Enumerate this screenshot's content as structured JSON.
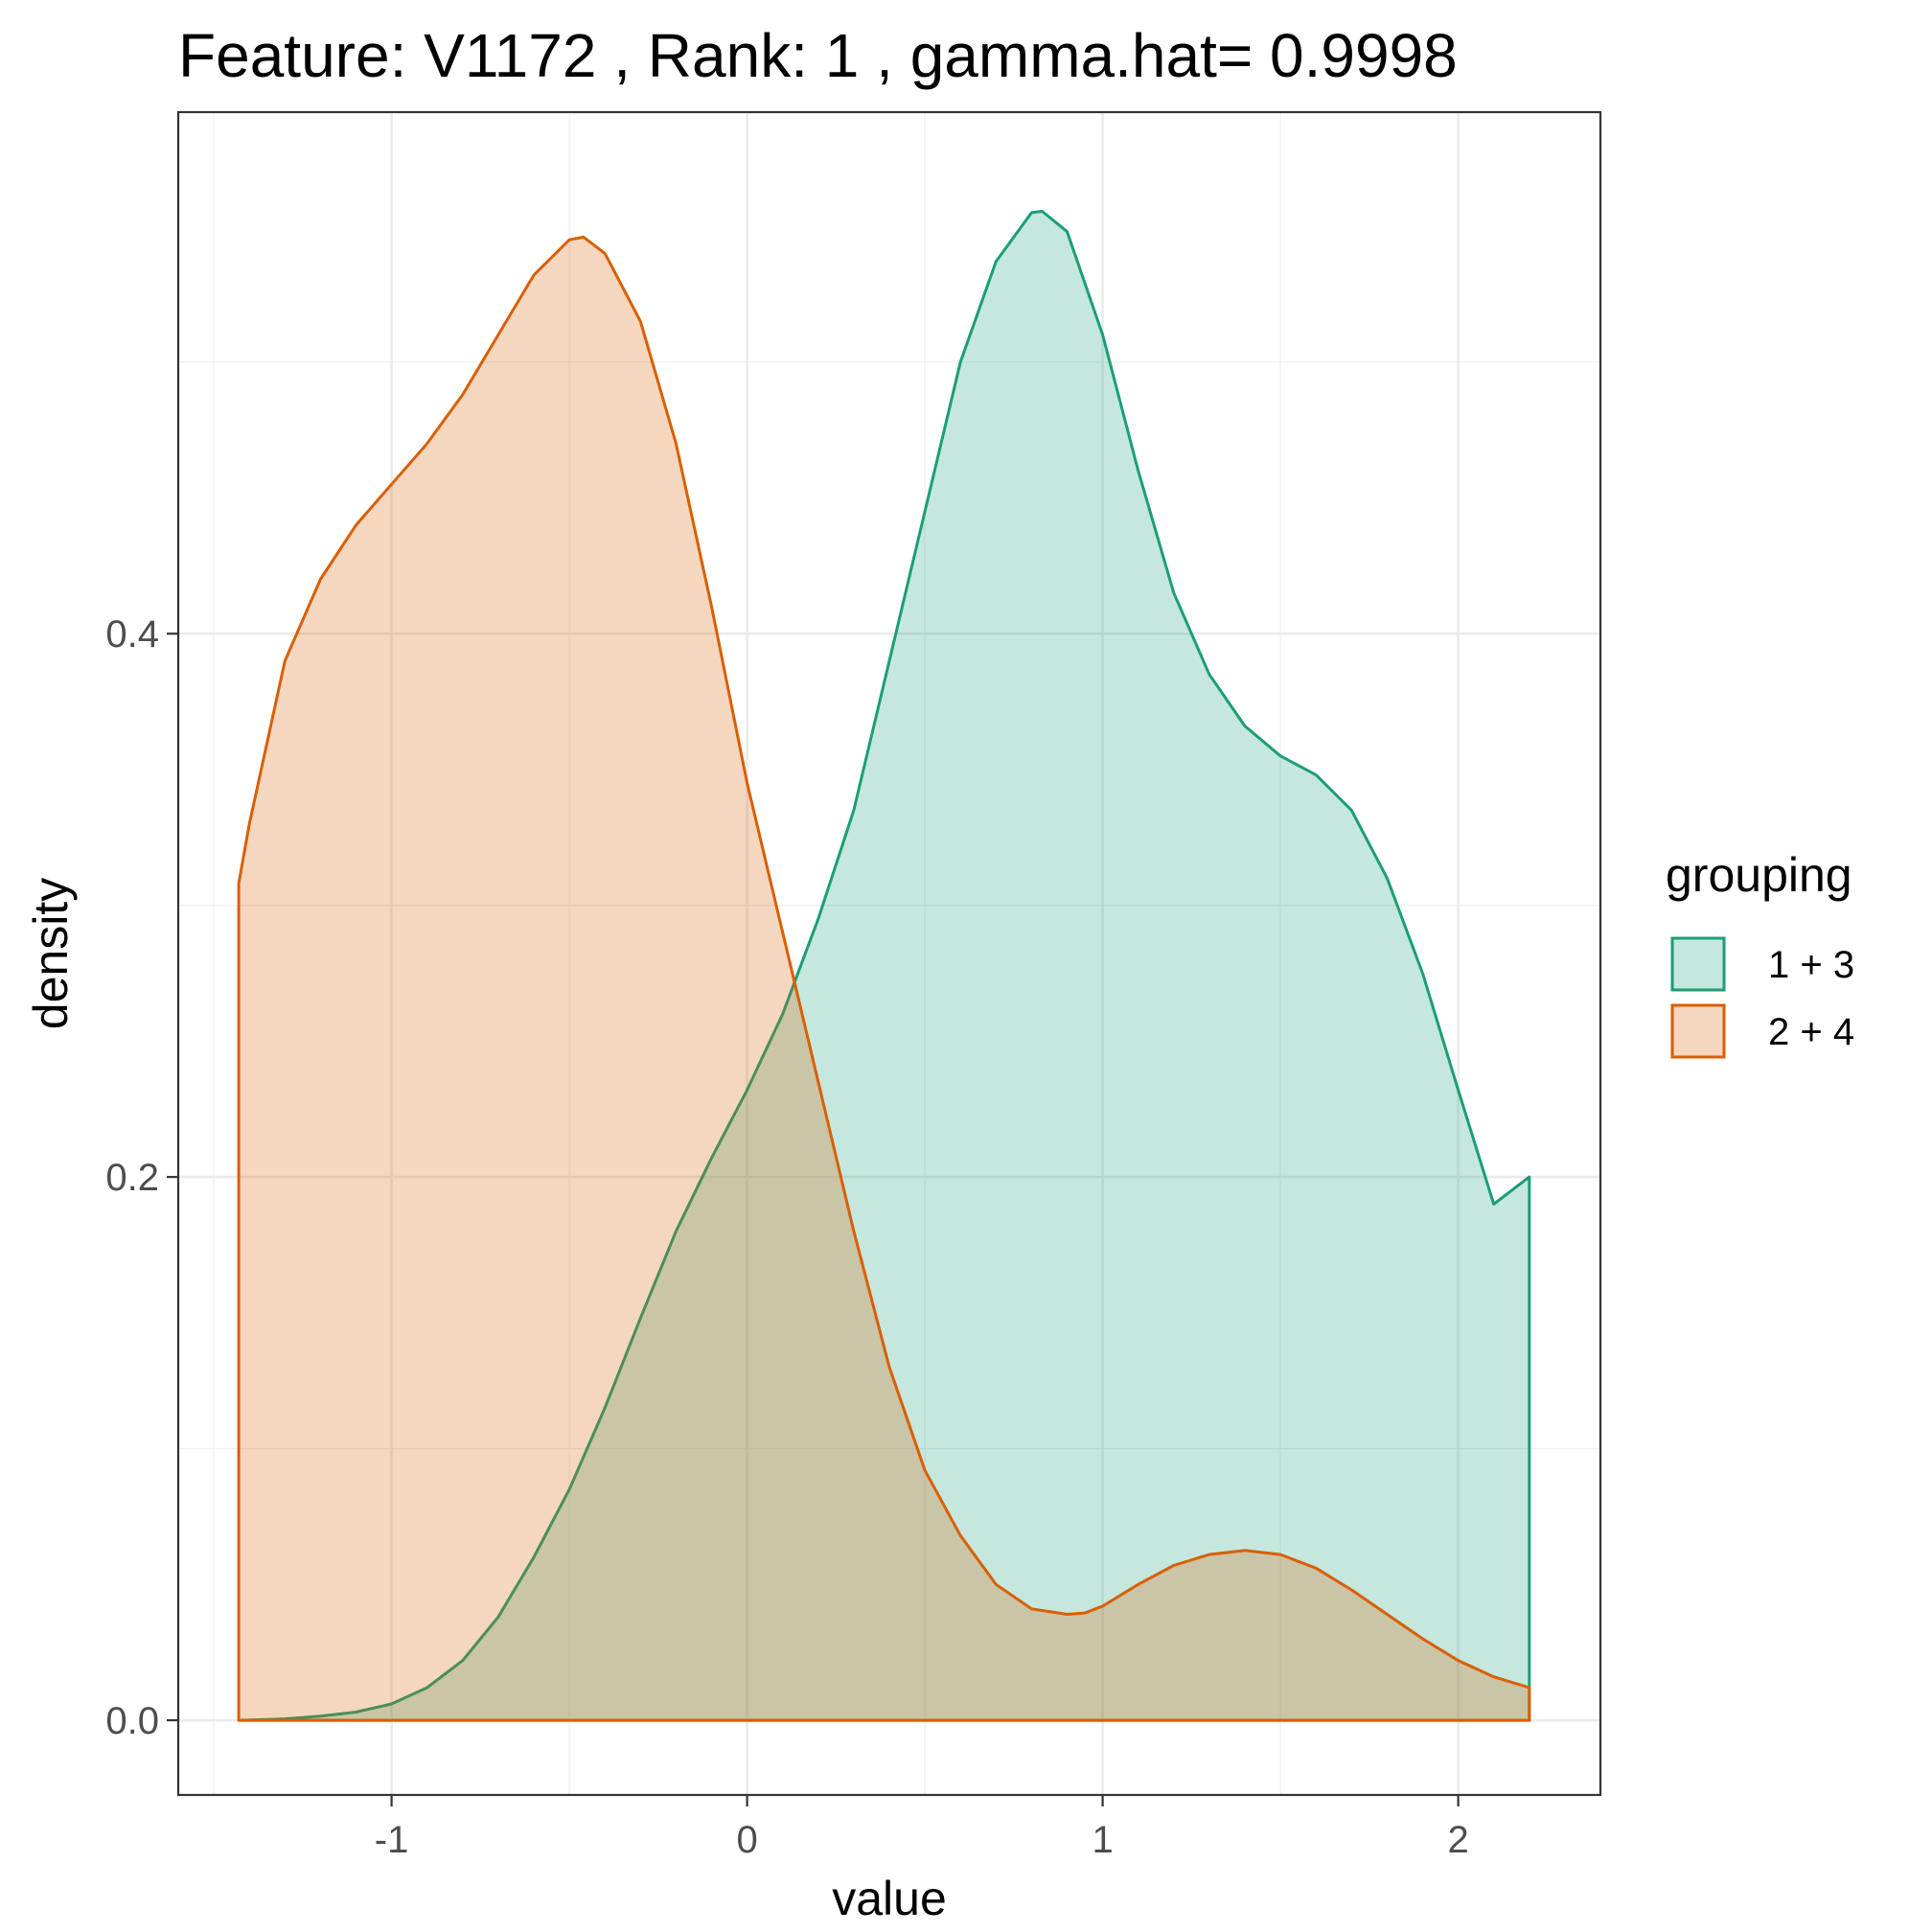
{
  "chart_data": {
    "type": "area",
    "subtype": "density",
    "title": "Feature: V1172 , Rank: 1 , gamma.hat= 0.9998",
    "xlabel": "value",
    "ylabel": "density",
    "xlim": [
      -1.6,
      2.4
    ],
    "ylim": [
      -0.0275,
      0.592
    ],
    "x_ticks": [
      -1,
      0,
      1,
      2
    ],
    "x_tick_labels": [
      "-1",
      "0",
      "1",
      "2"
    ],
    "y_ticks": [
      0.0,
      0.2,
      0.4
    ],
    "y_tick_labels": [
      "0.0",
      "0.2",
      "0.4"
    ],
    "grid": true,
    "legend": {
      "title": "grouping",
      "position": "right"
    },
    "series": [
      {
        "name": "1 + 3",
        "color": "#1b9e77",
        "fill": "#c5e7df",
        "x": [
          -1.43,
          -1.3,
          -1.2,
          -1.1,
          -1.0,
          -0.9,
          -0.8,
          -0.7,
          -0.6,
          -0.5,
          -0.4,
          -0.3,
          -0.2,
          -0.1,
          0.0,
          0.1,
          0.2,
          0.3,
          0.4,
          0.5,
          0.6,
          0.7,
          0.8,
          0.83,
          0.9,
          1.0,
          1.1,
          1.2,
          1.3,
          1.4,
          1.5,
          1.6,
          1.7,
          1.8,
          1.9,
          2.0,
          2.1,
          2.2
        ],
        "y": [
          0.0,
          0.0005,
          0.0015,
          0.003,
          0.006,
          0.012,
          0.022,
          0.038,
          0.06,
          0.085,
          0.115,
          0.148,
          0.18,
          0.207,
          0.232,
          0.26,
          0.295,
          0.335,
          0.39,
          0.445,
          0.5,
          0.537,
          0.555,
          0.5555,
          0.548,
          0.51,
          0.46,
          0.415,
          0.385,
          0.366,
          0.355,
          0.348,
          0.335,
          0.31,
          0.275,
          0.232,
          0.19,
          0.2
        ]
      },
      {
        "name": "2 + 4",
        "color": "#d95f02",
        "fill": "#f5d5be",
        "x": [
          -1.43,
          -1.4,
          -1.3,
          -1.2,
          -1.1,
          -1.0,
          -0.9,
          -0.8,
          -0.7,
          -0.6,
          -0.5,
          -0.46,
          -0.4,
          -0.3,
          -0.2,
          -0.1,
          0.0,
          0.1,
          0.2,
          0.3,
          0.4,
          0.5,
          0.6,
          0.7,
          0.8,
          0.9,
          0.95,
          1.0,
          1.1,
          1.2,
          1.3,
          1.4,
          1.5,
          1.6,
          1.7,
          1.8,
          1.9,
          2.0,
          2.1,
          2.2
        ],
        "y": [
          0.308,
          0.33,
          0.39,
          0.42,
          0.44,
          0.455,
          0.47,
          0.488,
          0.51,
          0.532,
          0.545,
          0.546,
          0.54,
          0.515,
          0.47,
          0.41,
          0.345,
          0.29,
          0.235,
          0.18,
          0.13,
          0.092,
          0.068,
          0.05,
          0.041,
          0.039,
          0.0395,
          0.042,
          0.05,
          0.057,
          0.061,
          0.0625,
          0.061,
          0.056,
          0.048,
          0.039,
          0.03,
          0.022,
          0.016,
          0.012
        ]
      }
    ]
  }
}
